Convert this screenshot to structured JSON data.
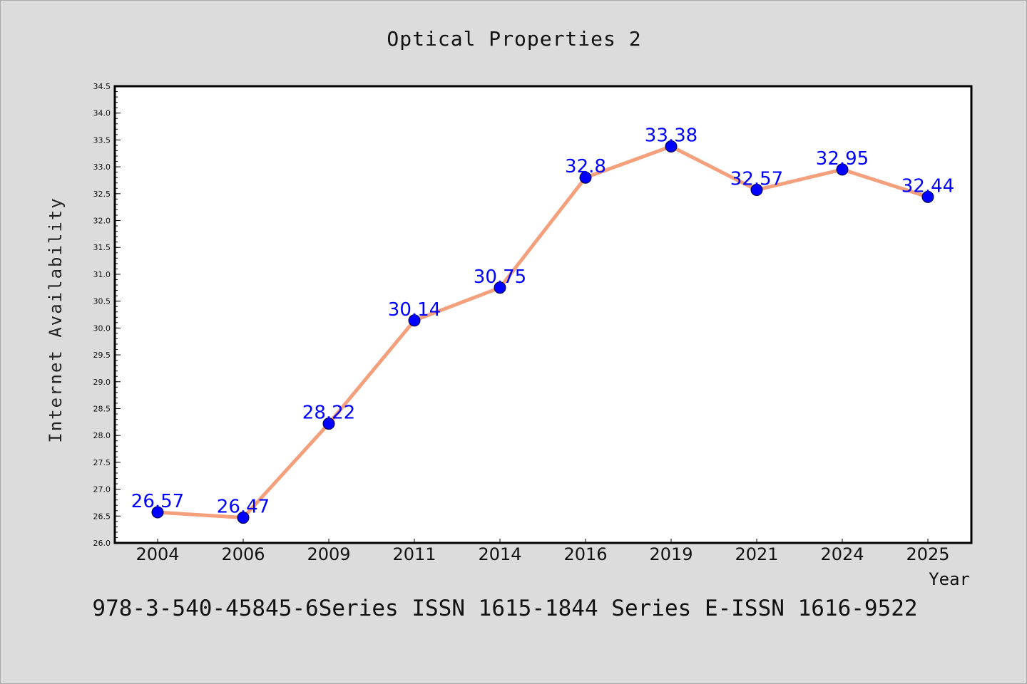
{
  "chart_data": {
    "type": "line",
    "title": "Optical Properties 2",
    "xlabel": "Year",
    "ylabel": "Internet Availability",
    "categories": [
      "2004",
      "2006",
      "2009",
      "2011",
      "2014",
      "2016",
      "2019",
      "2021",
      "2024",
      "2025"
    ],
    "series": [
      {
        "values": [
          26.57,
          26.47,
          28.22,
          30.14,
          30.75,
          32.8,
          33.38,
          32.57,
          32.95,
          32.44
        ],
        "data_labels": [
          "26.57",
          "26.47",
          "28.22",
          "30.14",
          "30.75",
          "32.8",
          "33.38",
          "32.57",
          "32.95",
          "32.44"
        ],
        "line_color": "#f4a07c",
        "marker_color": "#0000ff"
      }
    ],
    "ylim": [
      26.0,
      34.5
    ],
    "y_ticks": [
      "26.0",
      "26.5",
      "27.0",
      "27.5",
      "28.0",
      "28.5",
      "29.0",
      "29.5",
      "30.0",
      "30.5",
      "31.0",
      "31.5",
      "32.0",
      "32.5",
      "33.0",
      "33.5",
      "34.0",
      "34.5"
    ],
    "grid": false,
    "legend": "none"
  },
  "footer_text": "978-3-540-45845-6Series ISSN 1615-1844 Series E-ISSN 1616-9522",
  "colors": {
    "background": "#dcdcdc",
    "plot_background": "#ffffff",
    "line": "#f4a07c",
    "marker": "#0000ff",
    "data_label": "#0000ff"
  }
}
